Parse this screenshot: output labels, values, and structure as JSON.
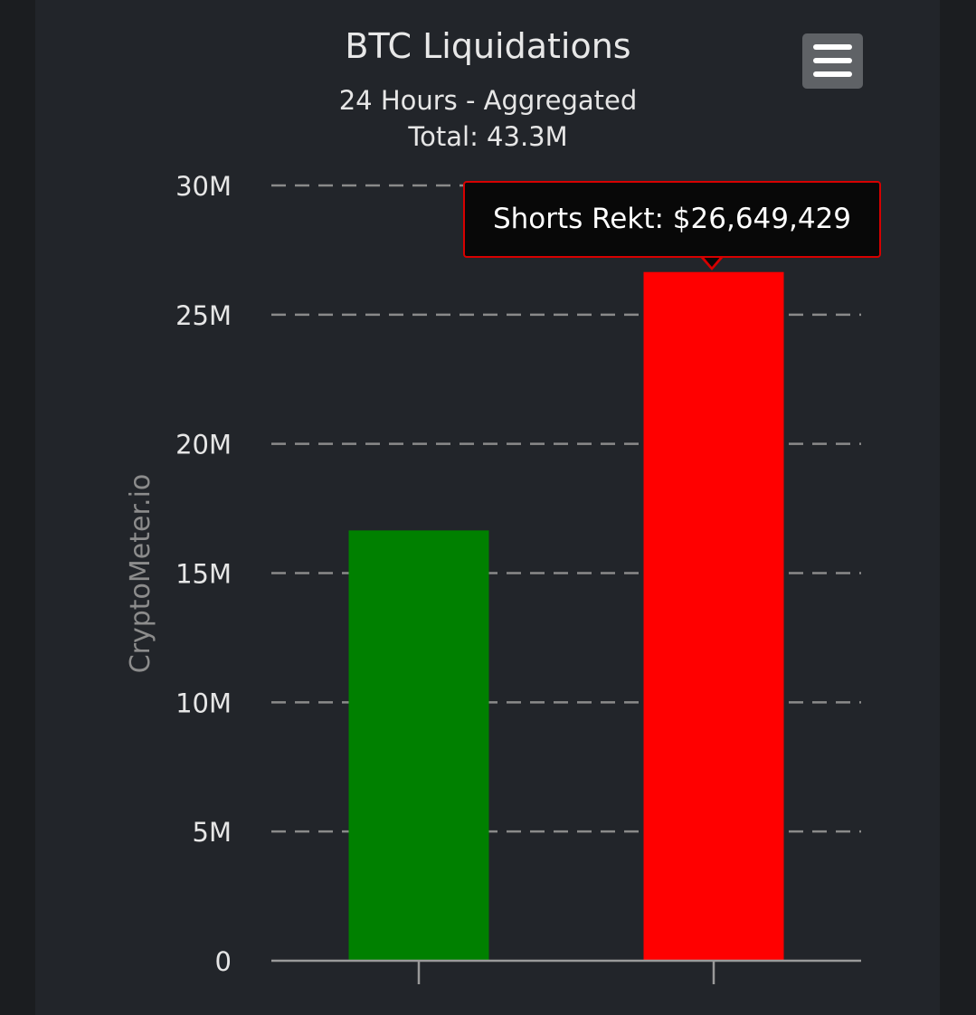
{
  "chart_data": {
    "type": "bar",
    "title": "BTC Liquidations",
    "subtitle_lines": [
      "24 Hours - Aggregated",
      "Total: 43.3M"
    ],
    "ylabel": "CryptoMeter.io",
    "xlabel": "",
    "ylim": [
      0,
      30000000
    ],
    "yticks": [
      {
        "value": 0,
        "label": "0"
      },
      {
        "value": 5000000,
        "label": "5M"
      },
      {
        "value": 10000000,
        "label": "10M"
      },
      {
        "value": 15000000,
        "label": "15M"
      },
      {
        "value": 20000000,
        "label": "20M"
      },
      {
        "value": 25000000,
        "label": "25M"
      },
      {
        "value": 30000000,
        "label": "30M"
      }
    ],
    "categories": [
      "",
      ""
    ],
    "values": [
      16650000,
      26649429
    ],
    "bar_colors": [
      "#008000",
      "#ff0000"
    ],
    "grid": true,
    "grid_style": "dashed"
  },
  "tooltip": {
    "text": "Shorts Rekt: $26,649,429"
  },
  "menu": {
    "icon": "hamburger-menu-icon"
  },
  "colors": {
    "background": "#22252a",
    "text": "#e6e6e6",
    "grid": "#8a8a8a",
    "tooltip_border": "#d60000"
  }
}
